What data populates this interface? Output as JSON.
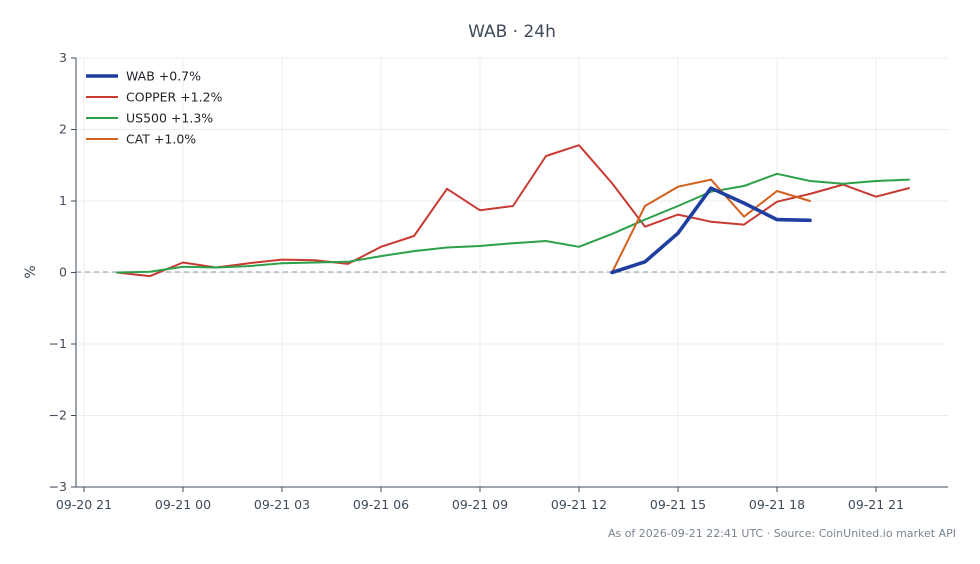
{
  "chart_data": {
    "type": "line",
    "title": "WAB · 24h",
    "xlabel": "",
    "ylabel": "%",
    "ylim": [
      -3,
      3
    ],
    "yticks": [
      "−3",
      "−2",
      "−1",
      "0",
      "1",
      "2",
      "3"
    ],
    "xticks": [
      "09-20 21",
      "09-21 00",
      "09-21 03",
      "09-21 06",
      "09-21 09",
      "09-21 12",
      "09-21 15",
      "09-21 18",
      "09-21 21"
    ],
    "x_hours": [
      "09-20 21:00",
      "09-20 22:00",
      "09-20 23:00",
      "09-21 00:00",
      "09-21 01:00",
      "09-21 02:00",
      "09-21 03:00",
      "09-21 04:00",
      "09-21 05:00",
      "09-21 06:00",
      "09-21 07:00",
      "09-21 08:00",
      "09-21 09:00",
      "09-21 10:00",
      "09-21 11:00",
      "09-21 12:00",
      "09-21 13:00",
      "09-21 14:00",
      "09-21 15:00",
      "09-21 16:00",
      "09-21 17:00",
      "09-21 18:00",
      "09-21 19:00",
      "09-21 20:00",
      "09-21 21:00",
      "09-21 22:00"
    ],
    "grid": true,
    "legend_position": "top-left",
    "zero_line": "dashed",
    "series": [
      {
        "name": "WAB +0.7%",
        "color": "#1f3fa0",
        "width": "thick",
        "points": [
          [
            "09-21 13:00",
            0.0
          ],
          [
            "09-21 14:00",
            0.15
          ],
          [
            "09-21 15:00",
            0.55
          ],
          [
            "09-21 16:00",
            1.18
          ],
          [
            "09-21 17:00",
            0.97
          ],
          [
            "09-21 18:00",
            0.74
          ],
          [
            "09-21 19:00",
            0.73
          ]
        ]
      },
      {
        "name": "COPPER +1.2%",
        "color": "#c93a33",
        "width": "normal",
        "points": [
          [
            "09-20 22:00",
            0.0
          ],
          [
            "09-20 23:00",
            -0.05
          ],
          [
            "09-21 00:00",
            0.14
          ],
          [
            "09-21 01:00",
            0.07
          ],
          [
            "09-21 02:00",
            0.13
          ],
          [
            "09-21 03:00",
            0.18
          ],
          [
            "09-21 04:00",
            0.17
          ],
          [
            "09-21 05:00",
            0.12
          ],
          [
            "09-21 06:00",
            0.36
          ],
          [
            "09-21 07:00",
            0.51
          ],
          [
            "09-21 08:00",
            1.17
          ],
          [
            "09-21 09:00",
            0.87
          ],
          [
            "09-21 10:00",
            0.93
          ],
          [
            "09-21 11:00",
            1.63
          ],
          [
            "09-21 12:00",
            1.78
          ],
          [
            "09-21 13:00",
            1.25
          ],
          [
            "09-21 14:00",
            0.64
          ],
          [
            "09-21 15:00",
            0.81
          ],
          [
            "09-21 16:00",
            0.71
          ],
          [
            "09-21 17:00",
            0.67
          ],
          [
            "09-21 18:00",
            0.99
          ],
          [
            "09-21 19:00",
            1.1
          ],
          [
            "09-21 20:00",
            1.23
          ],
          [
            "09-21 21:00",
            1.06
          ],
          [
            "09-21 22:00",
            1.18
          ]
        ]
      },
      {
        "name": "US500 +1.3%",
        "color": "#2ca04a",
        "width": "normal",
        "points": [
          [
            "09-20 22:00",
            0.0
          ],
          [
            "09-20 23:00",
            0.01
          ],
          [
            "09-21 00:00",
            0.08
          ],
          [
            "09-21 01:00",
            0.07
          ],
          [
            "09-21 02:00",
            0.09
          ],
          [
            "09-21 03:00",
            0.13
          ],
          [
            "09-21 04:00",
            0.14
          ],
          [
            "09-21 05:00",
            0.15
          ],
          [
            "09-21 06:00",
            0.23
          ],
          [
            "09-21 07:00",
            0.3
          ],
          [
            "09-21 08:00",
            0.35
          ],
          [
            "09-21 09:00",
            0.37
          ],
          [
            "09-21 10:00",
            0.41
          ],
          [
            "09-21 11:00",
            0.44
          ],
          [
            "09-21 12:00",
            0.36
          ],
          [
            "09-21 13:00",
            0.54
          ],
          [
            "09-21 14:00",
            0.74
          ],
          [
            "09-21 15:00",
            0.93
          ],
          [
            "09-21 16:00",
            1.13
          ],
          [
            "09-21 17:00",
            1.21
          ],
          [
            "09-21 18:00",
            1.38
          ],
          [
            "09-21 19:00",
            1.28
          ],
          [
            "09-21 20:00",
            1.24
          ],
          [
            "09-21 21:00",
            1.28
          ],
          [
            "09-21 22:00",
            1.3
          ]
        ]
      },
      {
        "name": "CAT +1.0%",
        "color": "#d2601f",
        "width": "normal",
        "points": [
          [
            "09-21 13:00",
            0.0
          ],
          [
            "09-21 14:00",
            0.93
          ],
          [
            "09-21 15:00",
            1.2
          ],
          [
            "09-21 16:00",
            1.3
          ],
          [
            "09-21 17:00",
            0.78
          ],
          [
            "09-21 18:00",
            1.14
          ],
          [
            "09-21 19:00",
            1.0
          ]
        ]
      }
    ]
  },
  "footer": "As of 2026-09-21 22:41 UTC · Source: CoinUnited.io market API"
}
